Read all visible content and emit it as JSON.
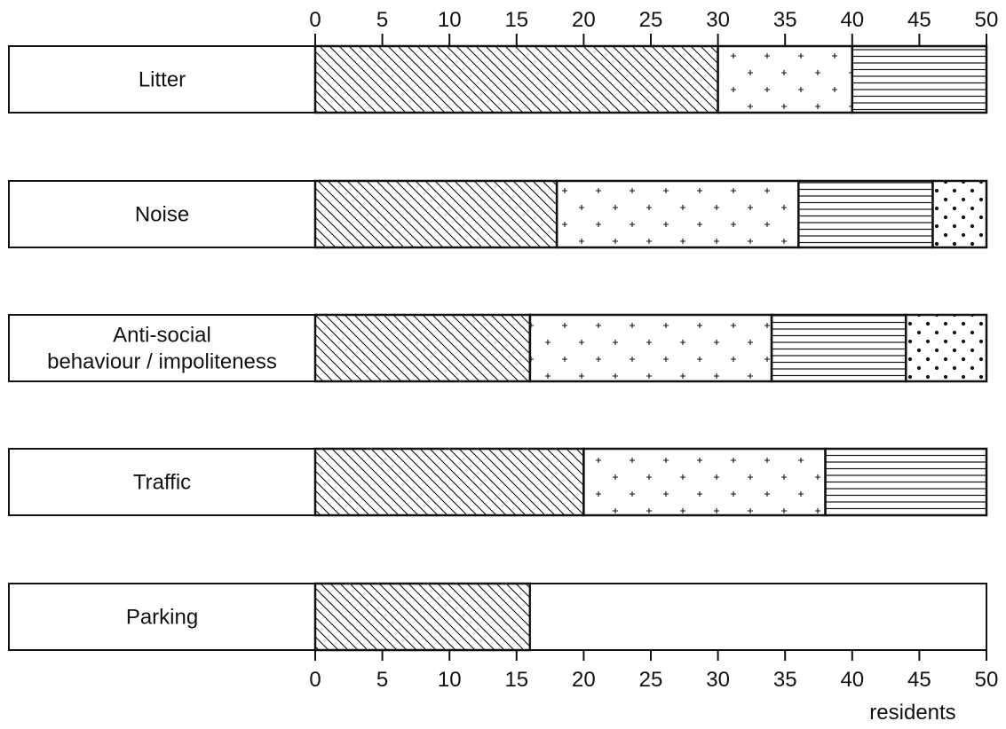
{
  "chart_data": {
    "type": "bar",
    "orientation": "horizontal",
    "stacked": true,
    "categories": [
      [
        "Litter"
      ],
      [
        "Noise"
      ],
      [
        "Anti-social",
        "behaviour / impoliteness"
      ],
      [
        "Traffic"
      ],
      [
        "Parking"
      ]
    ],
    "series": [
      {
        "pattern": "diagonal-hatch",
        "values": [
          30,
          18,
          16,
          20,
          16
        ]
      },
      {
        "pattern": "plus-signs",
        "values": [
          10,
          18,
          18,
          18,
          0
        ]
      },
      {
        "pattern": "horizontal-lines",
        "values": [
          10,
          10,
          10,
          12,
          0
        ]
      },
      {
        "pattern": "dots",
        "values": [
          0,
          4,
          6,
          0,
          0
        ]
      }
    ],
    "xlim": [
      0,
      50
    ],
    "xticks": [
      0,
      5,
      10,
      15,
      20,
      25,
      30,
      35,
      40,
      45,
      50
    ],
    "xlabel": "residents",
    "title": "",
    "grid": false,
    "xaxis_position": "top-and-bottom"
  }
}
